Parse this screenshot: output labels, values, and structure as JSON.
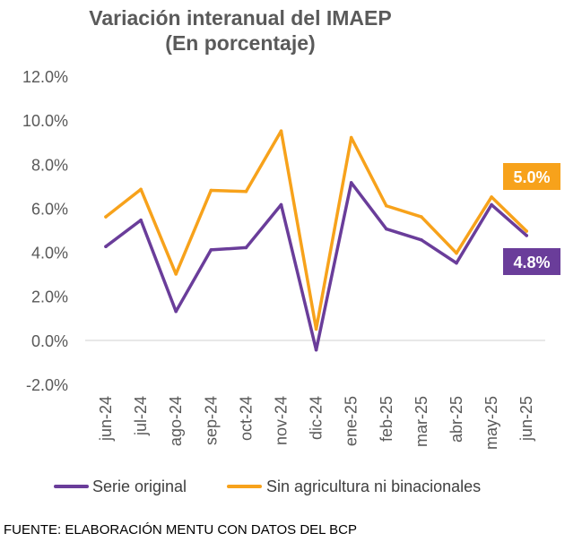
{
  "chart_data": {
    "type": "line",
    "title": "Variación interanual del IMAEP",
    "subtitle": "(En porcentaje)",
    "categories": [
      "jun-24",
      "jul-24",
      "ago-24",
      "sep-24",
      "oct-24",
      "nov-24",
      "dic-24",
      "ene-25",
      "feb-25",
      "mar-25",
      "abr-25",
      "may-25",
      "jun-25"
    ],
    "series": [
      {
        "name": "Serie original",
        "color": "#6a3d9a",
        "values": [
          4.3,
          5.5,
          1.35,
          4.15,
          4.25,
          6.2,
          -0.4,
          7.2,
          5.1,
          4.6,
          3.55,
          6.2,
          4.8
        ]
      },
      {
        "name": "Sin agricultura ni binacionales",
        "color": "#f7a21b",
        "values": [
          5.65,
          6.9,
          3.05,
          6.85,
          6.8,
          9.55,
          0.55,
          9.25,
          6.15,
          5.65,
          4.0,
          6.55,
          5.0
        ]
      }
    ],
    "yticks": [
      "12.0%",
      "10.0%",
      "8.0%",
      "6.0%",
      "4.0%",
      "2.0%",
      "0.0%",
      "-2.0%"
    ],
    "ylim": [
      -2,
      12
    ],
    "grid": false,
    "legend_position": "bottom",
    "annotations": [
      {
        "text": "5.0%",
        "series": "Sin agricultura ni binacionales",
        "color": "#f7a21b"
      },
      {
        "text": "4.8%",
        "series": "Serie original",
        "color": "#6a3d9a"
      }
    ]
  },
  "source": "FUENTE: ELABORACIÓN MENTU CON DATOS DEL BCP"
}
